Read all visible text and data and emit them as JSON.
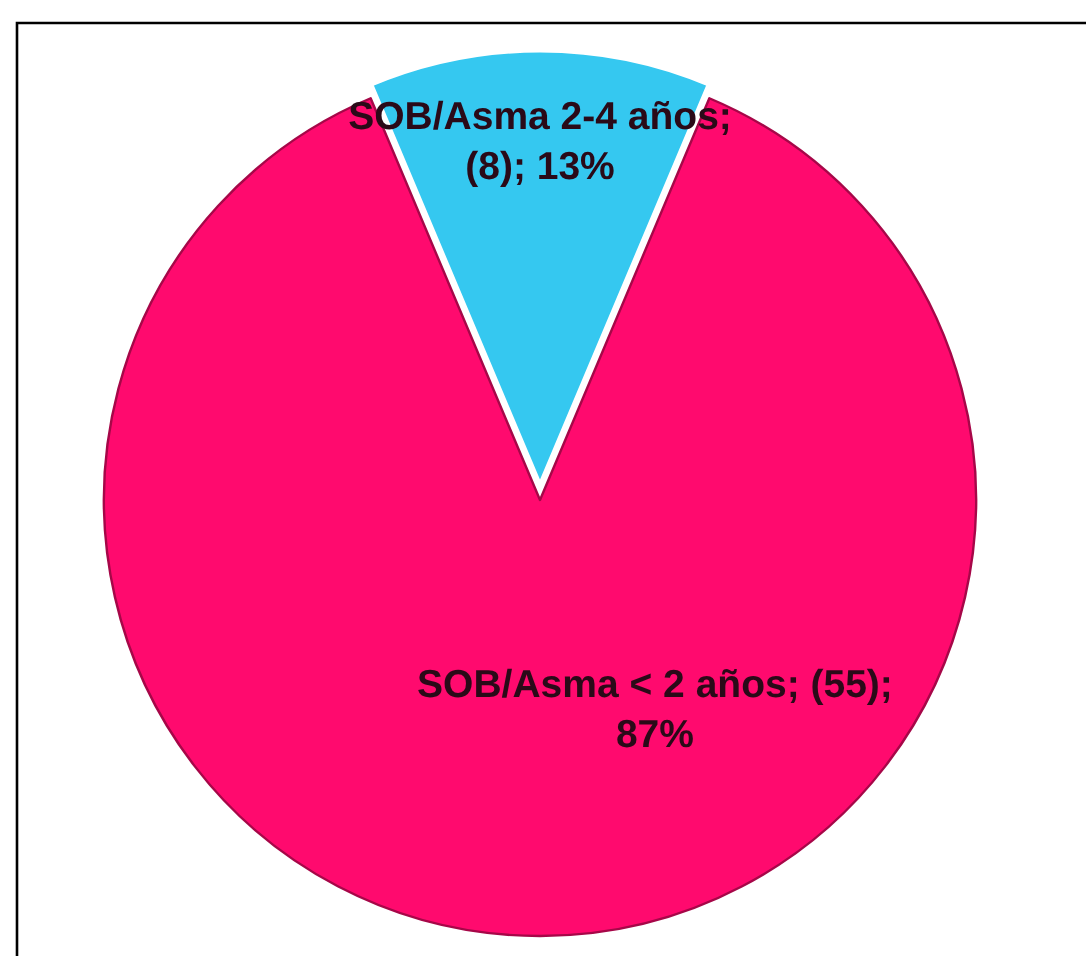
{
  "chart_data": {
    "type": "pie",
    "categories": [
      "SOB/Asma < 2 años",
      "SOB/Asma 2-4 años"
    ],
    "values": [
      55,
      8
    ],
    "colors": [
      "#ff0a6e",
      "#35c8f0"
    ],
    "value_labels": [
      "; (55); 87%",
      "; (8); 13%"
    ]
  }
}
